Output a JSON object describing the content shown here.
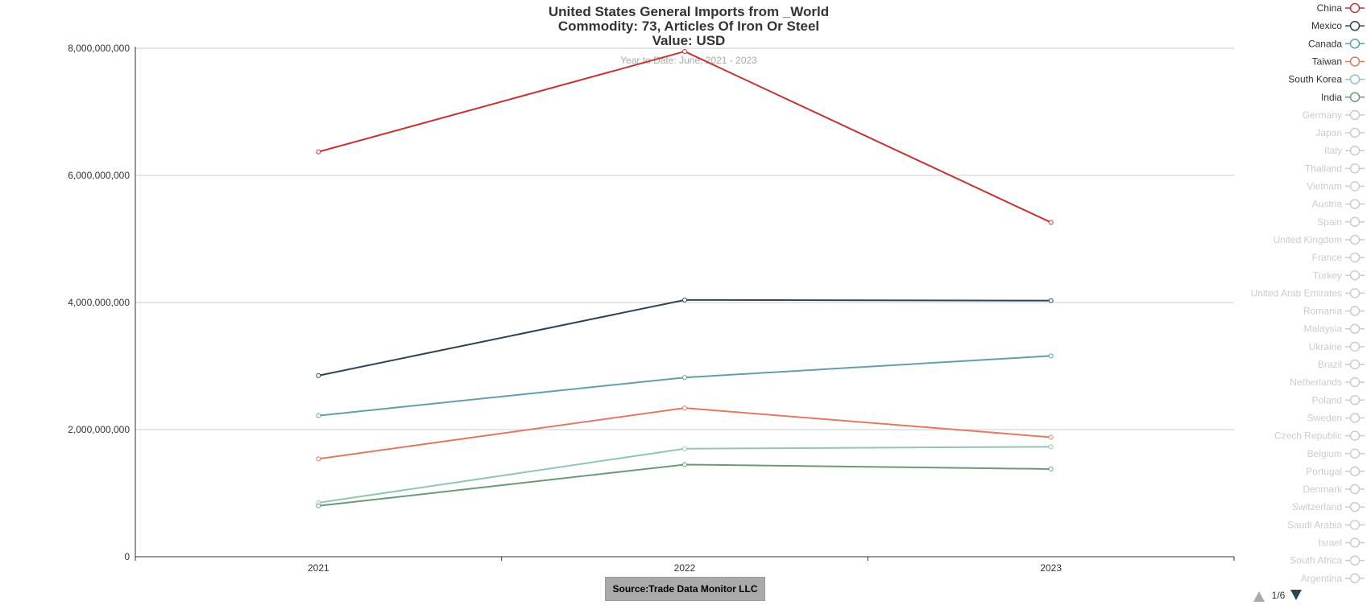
{
  "chart_data": {
    "type": "line",
    "title": [
      "United States General Imports from _World",
      "Commodity: 73, Articles Of Iron Or Steel",
      "Value: USD"
    ],
    "subtitle": "Year to Date: June, 2021 - 2023",
    "categories": [
      "2021",
      "2022",
      "2023"
    ],
    "ylim": [
      0,
      8000000000
    ],
    "y_ticks": [
      "0",
      "2,000,000,000",
      "4,000,000,000",
      "6,000,000,000",
      "8,000,000,000"
    ],
    "y_tick_values": [
      0,
      2000000000,
      4000000000,
      6000000000,
      8000000000
    ],
    "grid": true,
    "legend_placement": "right",
    "series": [
      {
        "name": "China",
        "color": "#c23531",
        "values": [
          6370000000,
          7950000000,
          5260000000
        ]
      },
      {
        "name": "Mexico",
        "color": "#2f4554",
        "values": [
          2850000000,
          4040000000,
          4030000000
        ]
      },
      {
        "name": "Canada",
        "color": "#61a0a8",
        "values": [
          2220000000,
          2820000000,
          3160000000
        ]
      },
      {
        "name": "Taiwan",
        "color": "#e07a5f",
        "values": [
          1540000000,
          2340000000,
          1880000000
        ]
      },
      {
        "name": "South Korea",
        "color": "#91c7ae",
        "values": [
          850000000,
          1700000000,
          1730000000
        ]
      },
      {
        "name": "India",
        "color": "#6a9a78",
        "values": [
          800000000,
          1450000000,
          1380000000
        ]
      }
    ],
    "legend_items": [
      {
        "name": "China",
        "active": true,
        "color": "#c23531"
      },
      {
        "name": "Mexico",
        "active": true,
        "color": "#2f4554"
      },
      {
        "name": "Canada",
        "active": true,
        "color": "#61a0a8"
      },
      {
        "name": "Taiwan",
        "active": true,
        "color": "#e07a5f"
      },
      {
        "name": "South Korea",
        "active": true,
        "color": "#91c7ae"
      },
      {
        "name": "India",
        "active": true,
        "color": "#6a9a78"
      },
      {
        "name": "Germany",
        "active": false
      },
      {
        "name": "Japan",
        "active": false
      },
      {
        "name": "Italy",
        "active": false
      },
      {
        "name": "Thailand",
        "active": false
      },
      {
        "name": "Vietnam",
        "active": false
      },
      {
        "name": "Austria",
        "active": false
      },
      {
        "name": "Spain",
        "active": false
      },
      {
        "name": "United Kingdom",
        "active": false
      },
      {
        "name": "France",
        "active": false
      },
      {
        "name": "Turkey",
        "active": false
      },
      {
        "name": "United Arab Emirates",
        "active": false
      },
      {
        "name": "Romania",
        "active": false
      },
      {
        "name": "Malaysia",
        "active": false
      },
      {
        "name": "Ukraine",
        "active": false
      },
      {
        "name": "Brazil",
        "active": false
      },
      {
        "name": "Netherlands",
        "active": false
      },
      {
        "name": "Poland",
        "active": false
      },
      {
        "name": "Sweden",
        "active": false
      },
      {
        "name": "Czech Republic",
        "active": false
      },
      {
        "name": "Belgium",
        "active": false
      },
      {
        "name": "Portugal",
        "active": false
      },
      {
        "name": "Denmark",
        "active": false
      },
      {
        "name": "Switzerland",
        "active": false
      },
      {
        "name": "Saudi Arabia",
        "active": false
      },
      {
        "name": "Israel",
        "active": false
      },
      {
        "name": "South Africa",
        "active": false
      },
      {
        "name": "Argentina",
        "active": false
      }
    ],
    "legend_page": "1/6",
    "source": "Source:Trade Data Monitor LLC"
  },
  "colors": {
    "inactive": "#cccccc",
    "axis": "#333333",
    "grid": "#cccccc",
    "page_up": "#aaaaaa",
    "page_down": "#2f4554"
  }
}
